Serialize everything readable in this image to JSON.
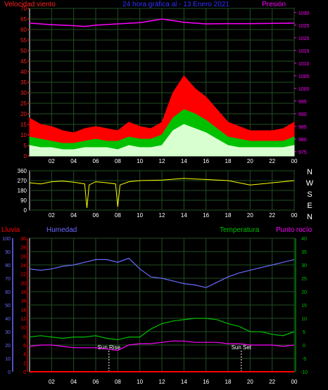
{
  "chart_data": [
    {
      "type": "line",
      "title": "24 hora gráfica al - 13 Enero 2021",
      "left_axis_label": "Velocidad viento",
      "right_axis_label": "Presión",
      "x_tick_labels": [
        "02",
        "04",
        "06",
        "08",
        "10",
        "12",
        "14",
        "16",
        "18",
        "20",
        "22",
        "00"
      ],
      "y_left_ticks": [
        0,
        5,
        10,
        15,
        20,
        25,
        30,
        35,
        40,
        45,
        50,
        55,
        60,
        65,
        70
      ],
      "y_left_range": [
        0,
        70
      ],
      "y_right_ticks": [
        975,
        980,
        985,
        990,
        995,
        1000,
        1005,
        1010,
        1015,
        1020,
        1025,
        1030
      ],
      "y_right_range": [
        973.3,
        1031.6
      ],
      "grid": true,
      "colors": {
        "gust": "#ff0000",
        "average": "#00c000",
        "wind_min": "#d8ffd0",
        "pressure": "#ff00ff",
        "left_axis": "#ff2020",
        "right_axis": "#ff00ff",
        "title": "#3030ff"
      },
      "series": [
        {
          "key": "gust",
          "x": [
            0,
            1,
            2,
            3,
            4,
            5,
            6,
            7,
            8,
            9,
            10,
            11,
            12,
            13,
            14,
            15,
            16,
            17,
            18,
            19,
            20,
            21,
            22,
            23,
            24
          ],
          "values": [
            18,
            15,
            14,
            12,
            11,
            13,
            14,
            13,
            12,
            16,
            14,
            13,
            16,
            30,
            38,
            32,
            28,
            22,
            16,
            14,
            12,
            12,
            12,
            13,
            16
          ]
        },
        {
          "key": "average",
          "x": [
            0,
            1,
            2,
            3,
            4,
            5,
            6,
            7,
            8,
            9,
            10,
            11,
            12,
            13,
            14,
            15,
            16,
            17,
            18,
            19,
            20,
            21,
            22,
            23,
            24
          ],
          "values": [
            9,
            8,
            7,
            6,
            6,
            7,
            8,
            7,
            7,
            9,
            8,
            8,
            10,
            18,
            22,
            20,
            17,
            13,
            9,
            8,
            7,
            7,
            7,
            7,
            9
          ]
        },
        {
          "key": "wind_min",
          "x": [
            0,
            1,
            2,
            3,
            4,
            5,
            6,
            7,
            8,
            9,
            10,
            11,
            12,
            13,
            14,
            15,
            16,
            17,
            18,
            19,
            20,
            21,
            22,
            23,
            24
          ],
          "values": [
            5,
            4,
            4,
            3,
            3,
            4,
            4,
            4,
            3,
            5,
            4,
            4,
            5,
            12,
            15,
            13,
            11,
            8,
            5,
            4,
            4,
            4,
            4,
            4,
            5
          ]
        },
        {
          "key": "pressure",
          "axis": "right",
          "x": [
            0,
            2,
            4,
            5,
            6,
            8,
            10,
            12,
            13,
            14,
            16,
            18,
            20,
            22,
            24
          ],
          "values": [
            1025.8,
            1025.2,
            1024.8,
            1024.5,
            1025.0,
            1025.5,
            1026.0,
            1027.4,
            1026.8,
            1026.1,
            1025.5,
            1025.6,
            1025.6,
            1025.7,
            1025.8
          ]
        }
      ]
    },
    {
      "type": "line",
      "x_tick_labels": [
        "02",
        "04",
        "06",
        "08",
        "10",
        "12",
        "14",
        "16",
        "18",
        "20",
        "22",
        "00"
      ],
      "y_left_ticks": [
        0,
        90,
        180,
        270,
        360
      ],
      "y_range": [
        0,
        360
      ],
      "compass_labels": [
        "N",
        "W",
        "S",
        "E",
        "N"
      ],
      "grid": true,
      "colors": {
        "direction": "#ffff00"
      },
      "series": [
        {
          "key": "direction",
          "x": [
            0,
            1,
            2,
            3,
            4,
            5,
            5.2,
            5.4,
            6,
            7,
            7.8,
            8,
            8.2,
            9,
            10,
            12,
            14,
            15,
            16,
            18,
            20,
            21,
            22,
            23,
            24
          ],
          "values": [
            250,
            240,
            260,
            265,
            255,
            240,
            20,
            230,
            260,
            250,
            240,
            30,
            230,
            260,
            270,
            275,
            290,
            285,
            280,
            270,
            230,
            240,
            250,
            260,
            270
          ]
        }
      ]
    },
    {
      "type": "line",
      "header_labels": {
        "rain": "Lluvia",
        "humidity": "Humedad",
        "temperature": "Temperatura",
        "dewpoint": "Punto rocío"
      },
      "x_tick_labels": [
        "02",
        "04",
        "06",
        "08",
        "10",
        "12",
        "14",
        "16",
        "18",
        "20",
        "22",
        "00"
      ],
      "humidity_ticks": [
        0,
        10,
        20,
        30,
        40,
        50,
        60,
        70,
        80,
        90,
        100
      ],
      "rain_ticks": [
        0,
        2,
        4,
        6,
        8,
        10,
        12,
        14,
        16,
        18,
        20,
        22,
        24,
        26,
        28,
        30
      ],
      "temperature_ticks": [
        -10,
        -5,
        0,
        5,
        10,
        15,
        20,
        25,
        30,
        35,
        40
      ],
      "humidity_range": [
        0,
        100
      ],
      "temperature_range": [
        -10,
        40
      ],
      "annotations": [
        {
          "text": "Sun Rise",
          "x": 7.2
        },
        {
          "text": "Sun Set",
          "x": 19.2
        }
      ],
      "grid": true,
      "colors": {
        "rain": "#ff0000",
        "humidity": "#6a6aff",
        "temperature": "#00c000",
        "dewpoint": "#ff00ff"
      },
      "series": [
        {
          "key": "humidity",
          "x": [
            0,
            1,
            2,
            3,
            4,
            5,
            6,
            7,
            8,
            9,
            10,
            11,
            12,
            13,
            14,
            15,
            16,
            17,
            18,
            19,
            20,
            21,
            22,
            23,
            24
          ],
          "values": [
            77,
            76,
            77,
            79,
            80,
            82,
            84,
            84,
            82,
            85,
            77,
            71,
            70,
            68,
            66,
            65,
            63,
            67,
            71,
            74,
            76,
            78,
            80,
            82,
            84
          ]
        },
        {
          "key": "temperature",
          "x": [
            0,
            1,
            2,
            3,
            4,
            5,
            6,
            7,
            8,
            9,
            10,
            11,
            12,
            13,
            14,
            15,
            16,
            17,
            18,
            19,
            20,
            21,
            22,
            23,
            24
          ],
          "values": [
            3,
            3.5,
            3,
            2.5,
            3,
            3,
            3.5,
            2.5,
            2,
            3,
            3,
            6,
            8,
            9,
            9.5,
            10,
            10,
            9.5,
            8,
            7,
            5,
            5,
            4,
            3.5,
            5
          ]
        },
        {
          "key": "dewpoint",
          "x": [
            0,
            1,
            2,
            3,
            4,
            5,
            6,
            7,
            8,
            9,
            10,
            11,
            12,
            13,
            14,
            15,
            16,
            17,
            18,
            19,
            20,
            21,
            22,
            23,
            24
          ],
          "values": [
            -0.5,
            0,
            0,
            -0.5,
            -1,
            -1,
            -1,
            -1.5,
            -2,
            0,
            0.5,
            0.5,
            1,
            1.5,
            1.5,
            1,
            1,
            1,
            0.5,
            0.5,
            0,
            0,
            0,
            -0.5,
            0
          ]
        },
        {
          "key": "rain",
          "x": [
            0,
            24
          ],
          "values": [
            0,
            0
          ]
        }
      ]
    }
  ]
}
